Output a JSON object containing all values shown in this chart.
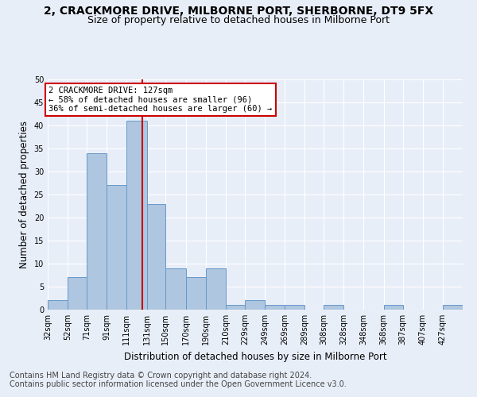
{
  "title": "2, CRACKMORE DRIVE, MILBORNE PORT, SHERBORNE, DT9 5FX",
  "subtitle": "Size of property relative to detached houses in Milborne Port",
  "xlabel": "Distribution of detached houses by size in Milborne Port",
  "ylabel": "Number of detached properties",
  "bar_values": [
    2,
    7,
    34,
    27,
    41,
    23,
    9,
    7,
    9,
    1,
    2,
    1,
    1,
    0,
    1,
    0,
    0,
    1,
    0,
    0,
    1
  ],
  "bin_edges": [
    32,
    52,
    71,
    91,
    111,
    131,
    150,
    170,
    190,
    210,
    229,
    249,
    269,
    289,
    308,
    328,
    348,
    368,
    387,
    407,
    427,
    447
  ],
  "tick_labels": [
    "32sqm",
    "52sqm",
    "71sqm",
    "91sqm",
    "111sqm",
    "131sqm",
    "150sqm",
    "170sqm",
    "190sqm",
    "210sqm",
    "229sqm",
    "249sqm",
    "269sqm",
    "289sqm",
    "308sqm",
    "328sqm",
    "348sqm",
    "368sqm",
    "387sqm",
    "407sqm",
    "427sqm"
  ],
  "bar_color": "#aec6df",
  "bar_edge_color": "#6699cc",
  "property_size": 127,
  "red_line_color": "#cc0000",
  "annotation_line1": "2 CRACKMORE DRIVE: 127sqm",
  "annotation_line2": "← 58% of detached houses are smaller (96)",
  "annotation_line3": "36% of semi-detached houses are larger (60) →",
  "annotation_box_color": "#ffffff",
  "annotation_box_edge": "#cc0000",
  "ylim": [
    0,
    50
  ],
  "yticks": [
    0,
    5,
    10,
    15,
    20,
    25,
    30,
    35,
    40,
    45,
    50
  ],
  "footer1": "Contains HM Land Registry data © Crown copyright and database right 2024.",
  "footer2": "Contains public sector information licensed under the Open Government Licence v3.0.",
  "bg_color": "#e8eef8",
  "grid_color": "#ffffff",
  "title_fontsize": 10,
  "subtitle_fontsize": 9,
  "axis_label_fontsize": 8.5,
  "tick_fontsize": 7,
  "annotation_fontsize": 7.5,
  "footer_fontsize": 7
}
